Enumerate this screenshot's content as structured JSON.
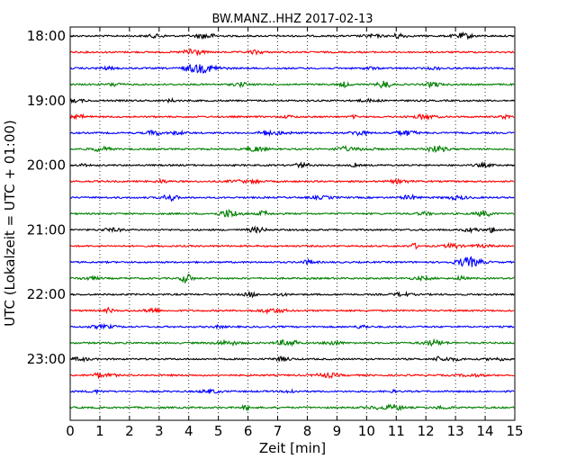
{
  "chart_data": {
    "type": "line",
    "title": "BW.MANZ..HHZ 2017-02-13",
    "xlabel": "Zeit  [min]",
    "ylabel": "UTC (Lokalzeit = UTC + 01:00)",
    "xlim": [
      0,
      15
    ],
    "x_ticks": [
      "0",
      "1",
      "2",
      "3",
      "4",
      "5",
      "6",
      "7",
      "8",
      "9",
      "10",
      "11",
      "12",
      "13",
      "14",
      "15"
    ],
    "y_tick_labels": [
      "18:00",
      "19:00",
      "20:00",
      "21:00",
      "22:00",
      "23:00"
    ],
    "y_tick_rows": [
      0,
      4,
      8,
      12,
      16,
      20
    ],
    "grid": "vertical dotted",
    "trace_colors": [
      "#000000",
      "#ff0000",
      "#0000ff",
      "#008000"
    ],
    "rows": [
      {
        "start": "18:00"
      },
      {
        "start": "18:15"
      },
      {
        "start": "18:30"
      },
      {
        "start": "18:45"
      },
      {
        "start": "19:00"
      },
      {
        "start": "19:15"
      },
      {
        "start": "19:30"
      },
      {
        "start": "19:45"
      },
      {
        "start": "20:00"
      },
      {
        "start": "20:15"
      },
      {
        "start": "20:30"
      },
      {
        "start": "20:45"
      },
      {
        "start": "21:00"
      },
      {
        "start": "21:15"
      },
      {
        "start": "21:30"
      },
      {
        "start": "21:45"
      },
      {
        "start": "22:00"
      },
      {
        "start": "22:15"
      },
      {
        "start": "22:30"
      },
      {
        "start": "22:45"
      },
      {
        "start": "23:00"
      },
      {
        "start": "23:15"
      },
      {
        "start": "23:30"
      },
      {
        "start": "23:45"
      }
    ]
  }
}
